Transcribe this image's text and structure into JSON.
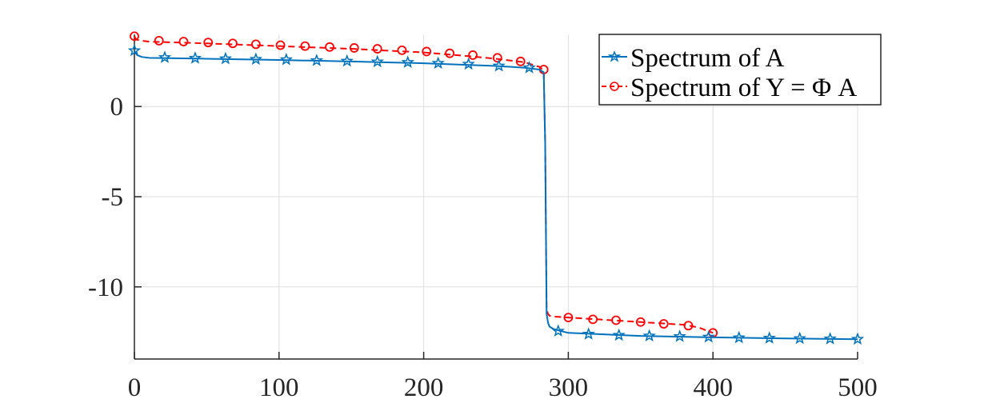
{
  "chart_data": {
    "type": "line",
    "title": "",
    "xlabel": "",
    "ylabel": "",
    "xlim": [
      0,
      500
    ],
    "ylim": [
      -14,
      4
    ],
    "x_ticks": [
      0,
      100,
      200,
      300,
      400,
      500
    ],
    "y_ticks": [
      0,
      -5,
      -10
    ],
    "x_tick_labels": [
      "0",
      "100",
      "200",
      "300",
      "400",
      "500"
    ],
    "y_tick_labels": [
      "0",
      "-5",
      "-10"
    ],
    "grid": true,
    "legend_position": "top-right",
    "series": [
      {
        "name": "Spectrum of A",
        "color": "#0072BD",
        "line_style": "solid",
        "marker": "pentagram",
        "x": [
          0,
          1,
          2,
          5,
          10,
          50,
          100,
          150,
          200,
          250,
          270,
          280,
          283,
          284,
          285,
          286,
          287,
          290,
          300,
          350,
          400,
          450,
          500
        ],
        "y": [
          3.1,
          2.95,
          2.85,
          2.75,
          2.7,
          2.65,
          2.58,
          2.5,
          2.4,
          2.25,
          2.15,
          2.05,
          1.9,
          -2.0,
          -11.5,
          -12.0,
          -12.2,
          -12.35,
          -12.55,
          -12.72,
          -12.8,
          -12.86,
          -12.9
        ],
        "markers_x": [
          0,
          21,
          42,
          63,
          84,
          105,
          126,
          147,
          168,
          189,
          210,
          231,
          252,
          273,
          293,
          314,
          335,
          356,
          377,
          397,
          418,
          439,
          460,
          481,
          500
        ],
        "markers_y": [
          3.1,
          2.72,
          2.68,
          2.65,
          2.62,
          2.6,
          2.55,
          2.52,
          2.48,
          2.45,
          2.4,
          2.35,
          2.25,
          2.15,
          -12.45,
          -12.62,
          -12.68,
          -12.72,
          -12.75,
          -12.78,
          -12.82,
          -12.84,
          -12.86,
          -12.88,
          -12.9
        ]
      },
      {
        "name": "Spectrum of Y = Φ A",
        "color": "#FF0000",
        "line_style": "dashed",
        "marker": "circle",
        "x": [
          0,
          1,
          2,
          5,
          10,
          50,
          100,
          150,
          200,
          230,
          250,
          270,
          280,
          283,
          284,
          285,
          286,
          287,
          290,
          300,
          350,
          380,
          390,
          400
        ],
        "y": [
          3.9,
          3.75,
          3.7,
          3.65,
          3.6,
          3.5,
          3.35,
          3.2,
          3.0,
          2.8,
          2.65,
          2.45,
          2.2,
          2.0,
          -2.0,
          -11.3,
          -11.5,
          -11.6,
          -11.65,
          -11.7,
          -11.95,
          -12.1,
          -12.25,
          -12.55
        ],
        "markers_x": [
          0,
          17,
          34,
          51,
          68,
          84,
          101,
          118,
          135,
          152,
          168,
          185,
          202,
          218,
          234,
          251,
          267,
          283,
          300,
          317,
          333,
          350,
          366,
          383,
          400
        ],
        "markers_y": [
          3.9,
          3.65,
          3.6,
          3.55,
          3.5,
          3.45,
          3.4,
          3.35,
          3.3,
          3.25,
          3.2,
          3.12,
          3.05,
          2.95,
          2.85,
          2.7,
          2.5,
          2.05,
          -11.7,
          -11.8,
          -11.85,
          -11.95,
          -12.05,
          -12.15,
          -12.55
        ]
      }
    ]
  },
  "legend": {
    "entries": [
      "Spectrum of A",
      "Spectrum of Y = Φ A"
    ]
  }
}
